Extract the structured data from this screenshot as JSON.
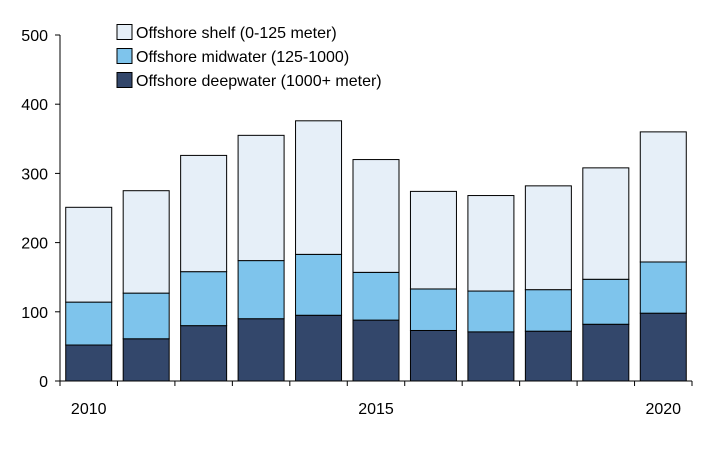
{
  "chart_data": {
    "type": "bar",
    "stacked": true,
    "title": "",
    "xlabel": "",
    "ylabel": "",
    "categories": [
      "2010",
      "2011",
      "2012",
      "2013",
      "2014",
      "2015",
      "2016",
      "2017",
      "2018",
      "2019",
      "2020"
    ],
    "x_tick_labels": [
      "2010",
      "",
      "",
      "",
      "",
      "2015",
      "",
      "",
      "",
      "",
      "2020"
    ],
    "ylim": [
      0,
      500
    ],
    "y_ticks": [
      0,
      100,
      200,
      300,
      400,
      500
    ],
    "grid": false,
    "legend_position": "top-center",
    "series": [
      {
        "name": "Offshore deepwater (1000+ meter)",
        "color": "#33476b",
        "values": [
          52,
          61,
          80,
          90,
          95,
          88,
          73,
          71,
          72,
          82,
          98
        ]
      },
      {
        "name": "Offshore midwater (125-1000)",
        "color": "#7ec4ec",
        "values": [
          62,
          66,
          78,
          84,
          88,
          69,
          60,
          59,
          60,
          65,
          74
        ]
      },
      {
        "name": "Offshore shelf (0-125 meter)",
        "color": "#e6eff8",
        "values": [
          137,
          148,
          168,
          181,
          193,
          163,
          141,
          138,
          150,
          161,
          188
        ]
      }
    ],
    "legend_order": [
      2,
      1,
      0
    ]
  }
}
